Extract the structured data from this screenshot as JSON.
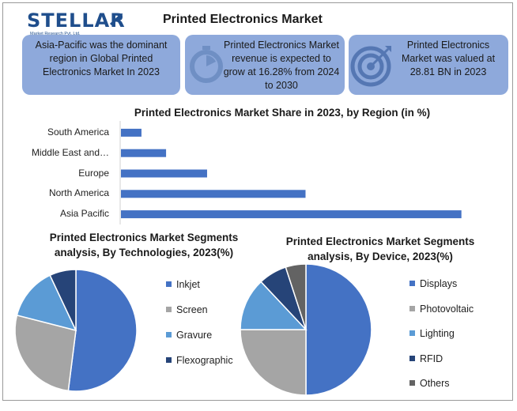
{
  "header": {
    "logo": {
      "word": "STELLAR",
      "tagline": "Market Research Pvt. Ltd."
    },
    "title": "Printed Electronics Market"
  },
  "cards": [
    {
      "icon": "none",
      "text": "Asia-Pacific was the dominant region in Global Printed Electronics Market In 2023"
    },
    {
      "icon": "stopwatch-icon",
      "text": "Printed Electronics Market revenue is expected to grow at 16.28% from 2024 to 2030"
    },
    {
      "icon": "target-icon",
      "text": "Printed Electronics Market was valued at 28.81 BN in 2023"
    }
  ],
  "colors": {
    "card_bg": "#8ea9db",
    "bar": "#4472c4",
    "brand": "#1f4e8c"
  },
  "chart_data": [
    {
      "type": "bar",
      "orientation": "horizontal",
      "title": "Printed Electronics  Market Share in 2023, by Region (in %)",
      "categories": [
        "South America",
        "Middle East and…",
        "Europe",
        "North America",
        "Asia Pacific"
      ],
      "values": [
        2.5,
        5.5,
        10.5,
        22.5,
        41.5
      ],
      "xlim": [
        0,
        45
      ],
      "grid": false,
      "legend": "none",
      "color": "#4472c4"
    },
    {
      "type": "pie",
      "title": "Printed Electronics  Market Segments analysis, By Technologies, 2023(%)",
      "categories": [
        "Inkjet",
        "Screen",
        "Gravure",
        "Flexographic"
      ],
      "values": [
        52,
        27,
        14,
        7
      ],
      "colors": [
        "#4472c4",
        "#a5a5a5",
        "#5b9bd5",
        "#264478"
      ],
      "legend": "right"
    },
    {
      "type": "pie",
      "title": "Printed Electronics  Market Segments analysis, By Device, 2023(%)",
      "categories": [
        "Displays",
        "Photovoltaic",
        "Lighting",
        "RFID",
        "Others"
      ],
      "values": [
        50,
        25,
        13,
        7,
        5
      ],
      "colors": [
        "#4472c4",
        "#a5a5a5",
        "#5b9bd5",
        "#264478",
        "#636363"
      ],
      "legend": "right"
    }
  ]
}
